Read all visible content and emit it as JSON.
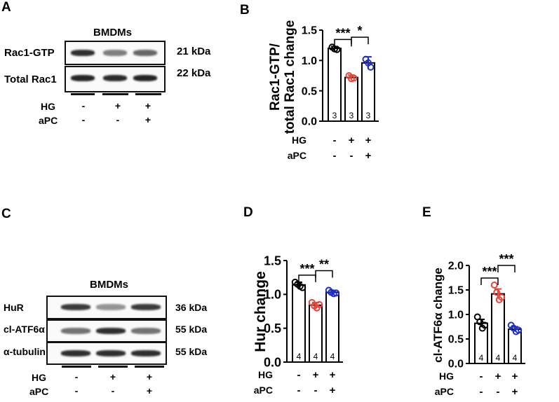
{
  "panel_A": {
    "letter": "A",
    "header": "BMDMs",
    "rows": [
      {
        "label": "Rac1-GTP",
        "kda": "21 kDa",
        "intensities": [
          0.9,
          0.55,
          0.65
        ]
      },
      {
        "label": "Total Rac1",
        "kda": "22 kDa",
        "intensities": [
          0.95,
          0.92,
          0.95
        ]
      }
    ],
    "conditions": [
      {
        "name": "HG",
        "values": [
          "-",
          "+",
          "+"
        ]
      },
      {
        "name": "aPC",
        "values": [
          "-",
          "-",
          "+"
        ]
      }
    ]
  },
  "panel_C": {
    "letter": "C",
    "header": "BMDMs",
    "rows": [
      {
        "label": "HuR",
        "kda": "36 kDa",
        "intensities": [
          0.85,
          0.45,
          0.85
        ]
      },
      {
        "label": "cl-ATF6α",
        "kda": "55 kDa",
        "intensities": [
          0.6,
          0.9,
          0.6
        ]
      },
      {
        "label": "α-tubulin",
        "kda": "55 kDa",
        "intensities": [
          0.9,
          0.9,
          0.9
        ]
      }
    ],
    "conditions": [
      {
        "name": "HG",
        "values": [
          "-",
          "+",
          "+"
        ]
      },
      {
        "name": "aPC",
        "values": [
          "-",
          "-",
          "+"
        ]
      }
    ]
  },
  "chart_data": [
    {
      "id": "B",
      "letter": "B",
      "type": "bar",
      "ylabel_line1": "Rac1-GTP/",
      "ylabel_line2": "total Rac1 change",
      "ylim": [
        0,
        1.5
      ],
      "ticks": [
        "0.0",
        "0.5",
        "1.0",
        "1.5"
      ],
      "tick_values": [
        0,
        0.5,
        1.0,
        1.5
      ],
      "values": [
        1.2,
        0.72,
        0.96
      ],
      "errors": [
        0.03,
        0.04,
        0.1
      ],
      "points": [
        [
          1.22,
          1.19,
          1.18
        ],
        [
          0.75,
          0.7,
          0.71
        ],
        [
          1.02,
          0.96,
          0.89
        ]
      ],
      "colors": [
        "#000000",
        "#e8453c",
        "#1f2fc4"
      ],
      "n_labels": [
        "3",
        "3",
        "3"
      ],
      "significance": [
        {
          "from": 0,
          "to": 1,
          "label": "***"
        },
        {
          "from": 1,
          "to": 2,
          "label": "*"
        }
      ],
      "conditions": [
        {
          "name": "HG",
          "values": [
            "-",
            "+",
            "+"
          ]
        },
        {
          "name": "aPC",
          "values": [
            "-",
            "-",
            "+"
          ]
        }
      ]
    },
    {
      "id": "D",
      "letter": "D",
      "type": "bar",
      "ylabel_line1": "Hur change",
      "ylabel_line2": "",
      "ylim": [
        0,
        1.5
      ],
      "ticks": [
        "0.0",
        "0.5",
        "1.0",
        "1.5"
      ],
      "tick_values": [
        0,
        0.5,
        1.0,
        1.5
      ],
      "values": [
        1.14,
        0.84,
        1.03
      ],
      "errors": [
        0.04,
        0.04,
        0.03
      ],
      "points": [
        [
          1.18,
          1.15,
          1.12,
          1.1
        ],
        [
          0.88,
          0.83,
          0.8,
          0.85
        ],
        [
          1.06,
          1.03,
          1.01,
          1.02
        ]
      ],
      "colors": [
        "#000000",
        "#e8453c",
        "#1f2fc4"
      ],
      "n_labels": [
        "4",
        "4",
        "4"
      ],
      "significance": [
        {
          "from": 0,
          "to": 1,
          "label": "***"
        },
        {
          "from": 1,
          "to": 2,
          "label": "**"
        }
      ],
      "conditions": [
        {
          "name": "HG",
          "values": [
            "-",
            "+",
            "+"
          ]
        },
        {
          "name": "aPC",
          "values": [
            "-",
            "-",
            "+"
          ]
        }
      ]
    },
    {
      "id": "E",
      "letter": "E",
      "type": "bar",
      "ylabel_line1": "cl-ATF6α change",
      "ylabel_line2": "",
      "ylim": [
        0,
        2.0
      ],
      "ticks": [
        "0.0",
        "0.5",
        "1.0",
        "1.5",
        "2.0"
      ],
      "tick_values": [
        0,
        0.5,
        1.0,
        1.5,
        2.0
      ],
      "values": [
        0.82,
        1.42,
        0.7
      ],
      "errors": [
        0.08,
        0.1,
        0.05
      ],
      "points": [
        [
          0.95,
          0.85,
          0.72,
          0.78
        ],
        [
          1.6,
          1.45,
          1.3,
          1.35
        ],
        [
          0.78,
          0.72,
          0.65,
          0.68
        ]
      ],
      "colors": [
        "#000000",
        "#e8453c",
        "#1f2fc4"
      ],
      "n_labels": [
        "4",
        "4",
        "4"
      ],
      "significance": [
        {
          "from": 0,
          "to": 1,
          "label": "***"
        },
        {
          "from": 1,
          "to": 2,
          "label": "***"
        }
      ],
      "conditions": [
        {
          "name": "HG",
          "values": [
            "-",
            "+",
            "+"
          ]
        },
        {
          "name": "aPC",
          "values": [
            "-",
            "-",
            "+"
          ]
        }
      ]
    }
  ]
}
